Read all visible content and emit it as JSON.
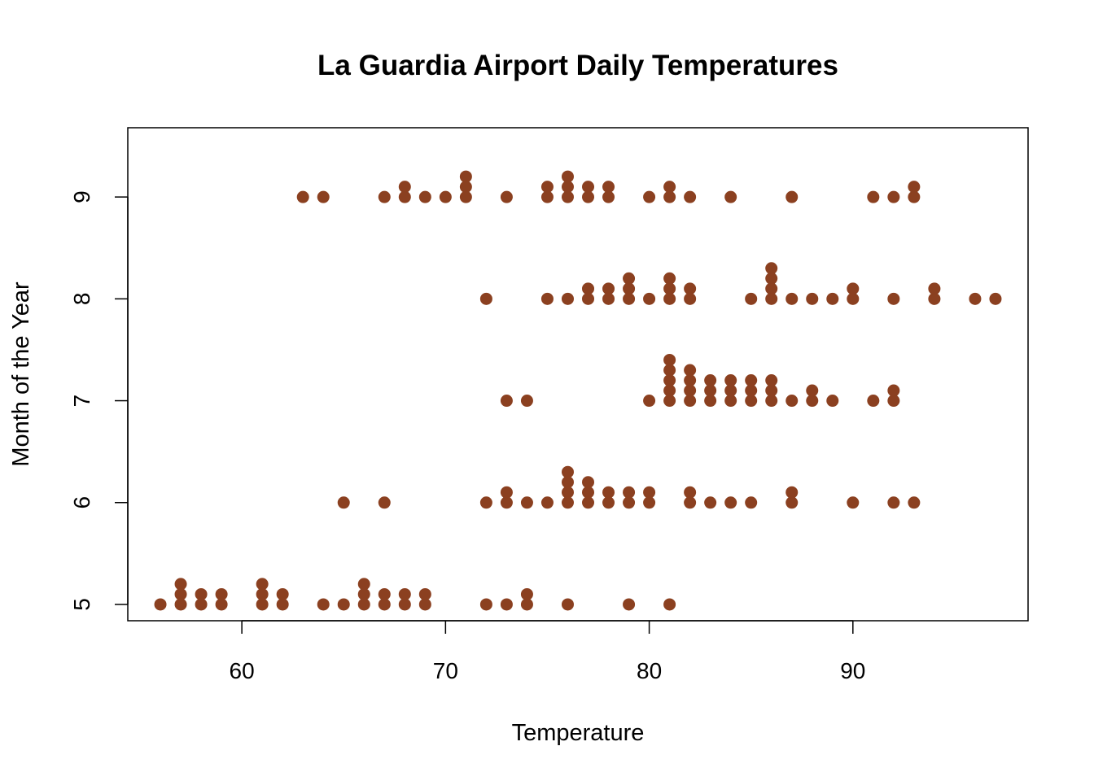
{
  "chart_data": {
    "type": "scatter",
    "title": "La Guardia Airport Daily Temperatures",
    "xlabel": "Temperature",
    "ylabel": "Month of the Year",
    "x_ticks": [
      60,
      70,
      80,
      90
    ],
    "y_ticks": [
      5,
      6,
      7,
      8,
      9
    ],
    "xlim": [
      54.4,
      98.6
    ],
    "ylim": [
      4.84,
      9.68
    ],
    "grid": false,
    "legend": "none",
    "point_color": "#8B4020",
    "stack_step": 0.1,
    "points": [
      {
        "x": 56,
        "y": 5.0
      },
      {
        "x": 57,
        "y": 5.0
      },
      {
        "x": 57,
        "y": 5.1
      },
      {
        "x": 57,
        "y": 5.2
      },
      {
        "x": 58,
        "y": 5.0
      },
      {
        "x": 58,
        "y": 5.1
      },
      {
        "x": 59,
        "y": 5.0
      },
      {
        "x": 59,
        "y": 5.1
      },
      {
        "x": 61,
        "y": 5.0
      },
      {
        "x": 61,
        "y": 5.1
      },
      {
        "x": 61,
        "y": 5.2
      },
      {
        "x": 62,
        "y": 5.0
      },
      {
        "x": 62,
        "y": 5.1
      },
      {
        "x": 64,
        "y": 5.0
      },
      {
        "x": 65,
        "y": 5.0
      },
      {
        "x": 66,
        "y": 5.0
      },
      {
        "x": 66,
        "y": 5.1
      },
      {
        "x": 66,
        "y": 5.2
      },
      {
        "x": 67,
        "y": 5.0
      },
      {
        "x": 67,
        "y": 5.1
      },
      {
        "x": 68,
        "y": 5.0
      },
      {
        "x": 68,
        "y": 5.1
      },
      {
        "x": 69,
        "y": 5.0
      },
      {
        "x": 69,
        "y": 5.1
      },
      {
        "x": 72,
        "y": 5.0
      },
      {
        "x": 73,
        "y": 5.0
      },
      {
        "x": 74,
        "y": 5.0
      },
      {
        "x": 74,
        "y": 5.1
      },
      {
        "x": 76,
        "y": 5.0
      },
      {
        "x": 79,
        "y": 5.0
      },
      {
        "x": 81,
        "y": 5.0
      },
      {
        "x": 65,
        "y": 6.0
      },
      {
        "x": 67,
        "y": 6.0
      },
      {
        "x": 72,
        "y": 6.0
      },
      {
        "x": 73,
        "y": 6.0
      },
      {
        "x": 73,
        "y": 6.1
      },
      {
        "x": 74,
        "y": 6.0
      },
      {
        "x": 75,
        "y": 6.0
      },
      {
        "x": 76,
        "y": 6.0
      },
      {
        "x": 76,
        "y": 6.1
      },
      {
        "x": 76,
        "y": 6.2
      },
      {
        "x": 76,
        "y": 6.3
      },
      {
        "x": 77,
        "y": 6.0
      },
      {
        "x": 77,
        "y": 6.1
      },
      {
        "x": 77,
        "y": 6.2
      },
      {
        "x": 78,
        "y": 6.0
      },
      {
        "x": 78,
        "y": 6.1
      },
      {
        "x": 79,
        "y": 6.0
      },
      {
        "x": 79,
        "y": 6.1
      },
      {
        "x": 80,
        "y": 6.0
      },
      {
        "x": 80,
        "y": 6.1
      },
      {
        "x": 82,
        "y": 6.0
      },
      {
        "x": 82,
        "y": 6.1
      },
      {
        "x": 83,
        "y": 6.0
      },
      {
        "x": 84,
        "y": 6.0
      },
      {
        "x": 85,
        "y": 6.0
      },
      {
        "x": 87,
        "y": 6.0
      },
      {
        "x": 87,
        "y": 6.1
      },
      {
        "x": 90,
        "y": 6.0
      },
      {
        "x": 92,
        "y": 6.0
      },
      {
        "x": 93,
        "y": 6.0
      },
      {
        "x": 73,
        "y": 7.0
      },
      {
        "x": 74,
        "y": 7.0
      },
      {
        "x": 80,
        "y": 7.0
      },
      {
        "x": 81,
        "y": 7.0
      },
      {
        "x": 81,
        "y": 7.1
      },
      {
        "x": 81,
        "y": 7.2
      },
      {
        "x": 81,
        "y": 7.3
      },
      {
        "x": 81,
        "y": 7.4
      },
      {
        "x": 82,
        "y": 7.0
      },
      {
        "x": 82,
        "y": 7.1
      },
      {
        "x": 82,
        "y": 7.2
      },
      {
        "x": 82,
        "y": 7.3
      },
      {
        "x": 83,
        "y": 7.0
      },
      {
        "x": 83,
        "y": 7.1
      },
      {
        "x": 83,
        "y": 7.2
      },
      {
        "x": 84,
        "y": 7.0
      },
      {
        "x": 84,
        "y": 7.1
      },
      {
        "x": 84,
        "y": 7.2
      },
      {
        "x": 85,
        "y": 7.0
      },
      {
        "x": 85,
        "y": 7.1
      },
      {
        "x": 85,
        "y": 7.2
      },
      {
        "x": 86,
        "y": 7.0
      },
      {
        "x": 86,
        "y": 7.1
      },
      {
        "x": 86,
        "y": 7.2
      },
      {
        "x": 87,
        "y": 7.0
      },
      {
        "x": 88,
        "y": 7.0
      },
      {
        "x": 88,
        "y": 7.1
      },
      {
        "x": 89,
        "y": 7.0
      },
      {
        "x": 91,
        "y": 7.0
      },
      {
        "x": 92,
        "y": 7.0
      },
      {
        "x": 92,
        "y": 7.1
      },
      {
        "x": 72,
        "y": 8.0
      },
      {
        "x": 75,
        "y": 8.0
      },
      {
        "x": 76,
        "y": 8.0
      },
      {
        "x": 77,
        "y": 8.0
      },
      {
        "x": 77,
        "y": 8.1
      },
      {
        "x": 78,
        "y": 8.0
      },
      {
        "x": 78,
        "y": 8.1
      },
      {
        "x": 79,
        "y": 8.0
      },
      {
        "x": 79,
        "y": 8.1
      },
      {
        "x": 79,
        "y": 8.2
      },
      {
        "x": 80,
        "y": 8.0
      },
      {
        "x": 81,
        "y": 8.0
      },
      {
        "x": 81,
        "y": 8.1
      },
      {
        "x": 81,
        "y": 8.2
      },
      {
        "x": 82,
        "y": 8.0
      },
      {
        "x": 82,
        "y": 8.1
      },
      {
        "x": 85,
        "y": 8.0
      },
      {
        "x": 86,
        "y": 8.0
      },
      {
        "x": 86,
        "y": 8.1
      },
      {
        "x": 86,
        "y": 8.2
      },
      {
        "x": 86,
        "y": 8.3
      },
      {
        "x": 87,
        "y": 8.0
      },
      {
        "x": 88,
        "y": 8.0
      },
      {
        "x": 89,
        "y": 8.0
      },
      {
        "x": 90,
        "y": 8.0
      },
      {
        "x": 90,
        "y": 8.1
      },
      {
        "x": 92,
        "y": 8.0
      },
      {
        "x": 94,
        "y": 8.0
      },
      {
        "x": 94,
        "y": 8.1
      },
      {
        "x": 96,
        "y": 8.0
      },
      {
        "x": 97,
        "y": 8.0
      },
      {
        "x": 63,
        "y": 9.0
      },
      {
        "x": 64,
        "y": 9.0
      },
      {
        "x": 67,
        "y": 9.0
      },
      {
        "x": 68,
        "y": 9.0
      },
      {
        "x": 68,
        "y": 9.1
      },
      {
        "x": 69,
        "y": 9.0
      },
      {
        "x": 70,
        "y": 9.0
      },
      {
        "x": 71,
        "y": 9.0
      },
      {
        "x": 71,
        "y": 9.1
      },
      {
        "x": 71,
        "y": 9.2
      },
      {
        "x": 73,
        "y": 9.0
      },
      {
        "x": 75,
        "y": 9.0
      },
      {
        "x": 75,
        "y": 9.1
      },
      {
        "x": 76,
        "y": 9.0
      },
      {
        "x": 76,
        "y": 9.1
      },
      {
        "x": 76,
        "y": 9.2
      },
      {
        "x": 77,
        "y": 9.0
      },
      {
        "x": 77,
        "y": 9.1
      },
      {
        "x": 78,
        "y": 9.0
      },
      {
        "x": 78,
        "y": 9.1
      },
      {
        "x": 80,
        "y": 9.0
      },
      {
        "x": 81,
        "y": 9.0
      },
      {
        "x": 81,
        "y": 9.1
      },
      {
        "x": 82,
        "y": 9.0
      },
      {
        "x": 84,
        "y": 9.0
      },
      {
        "x": 87,
        "y": 9.0
      },
      {
        "x": 91,
        "y": 9.0
      },
      {
        "x": 92,
        "y": 9.0
      },
      {
        "x": 93,
        "y": 9.0
      },
      {
        "x": 93,
        "y": 9.1
      }
    ]
  }
}
